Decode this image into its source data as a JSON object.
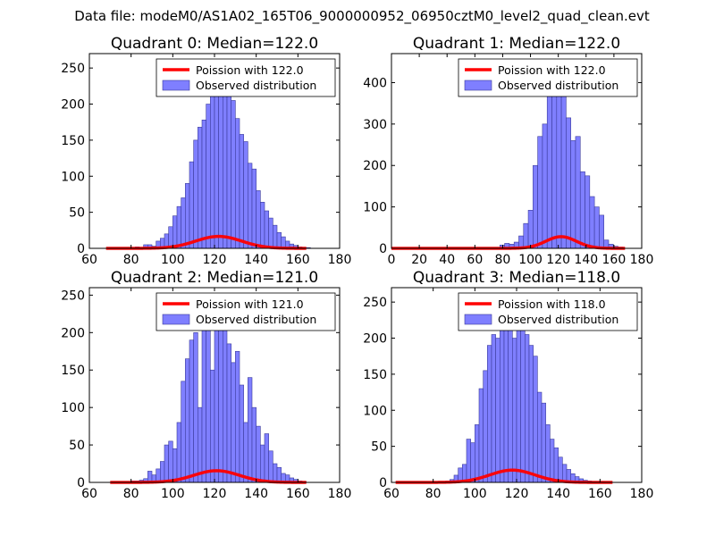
{
  "figure": {
    "suptitle": "Data file: modeM0/AS1A02_165T06_9000000952_06950cztM0_level2_quad_clean.evt"
  },
  "colors": {
    "bar_fill": "#7f7fff",
    "bar_edge": "#3a3a9a",
    "curve": "#ff0000",
    "axes": "#000000"
  },
  "chart_data": [
    {
      "type": "bar",
      "title": "Quadrant 0: Median=122.0",
      "xlim": [
        60,
        180
      ],
      "ylim": [
        0,
        270
      ],
      "xticks": [
        60,
        80,
        100,
        120,
        140,
        160,
        180
      ],
      "yticks": [
        0,
        50,
        100,
        150,
        200,
        250
      ],
      "legend": {
        "position": "top-right",
        "entries": [
          "Poission with 122.0",
          "Observed distribution"
        ]
      },
      "bin_width": 2,
      "series": [
        {
          "name": "Observed distribution",
          "kind": "histogram",
          "x": [
            68,
            70,
            72,
            74,
            76,
            78,
            80,
            82,
            84,
            86,
            88,
            90,
            92,
            94,
            96,
            98,
            100,
            102,
            104,
            106,
            108,
            110,
            112,
            114,
            116,
            118,
            120,
            122,
            124,
            126,
            128,
            130,
            132,
            134,
            136,
            138,
            140,
            142,
            144,
            146,
            148,
            150,
            152,
            154,
            156,
            158,
            160,
            162,
            164
          ],
          "values": [
            0,
            0,
            0,
            0,
            0,
            0,
            0,
            2,
            1,
            5,
            5,
            3,
            10,
            14,
            20,
            30,
            45,
            58,
            70,
            90,
            120,
            150,
            168,
            178,
            200,
            235,
            248,
            250,
            225,
            218,
            205,
            180,
            158,
            148,
            118,
            110,
            80,
            64,
            52,
            42,
            32,
            22,
            16,
            10,
            6,
            4,
            2,
            1,
            1
          ]
        },
        {
          "name": "Poission with 122.0",
          "kind": "curve",
          "mean": 122.0,
          "scale": 459,
          "x_range": [
            68,
            164
          ]
        }
      ]
    },
    {
      "type": "bar",
      "title": "Quadrant 1: Median=122.0",
      "xlim": [
        0,
        180
      ],
      "ylim": [
        0,
        470
      ],
      "xticks": [
        0,
        20,
        40,
        60,
        80,
        100,
        120,
        140,
        160,
        180
      ],
      "yticks": [
        0,
        100,
        200,
        300,
        400
      ],
      "legend": {
        "position": "top-right",
        "entries": [
          "Poission with 122.0",
          "Observed distribution"
        ]
      },
      "bin_width": 3.4,
      "series": [
        {
          "name": "Observed distribution",
          "kind": "histogram",
          "x": [
            78,
            81.4,
            84.8,
            88.2,
            91.6,
            95,
            98.4,
            101.8,
            105.2,
            108.6,
            112,
            115.4,
            118.8,
            122.2,
            125.6,
            129,
            132.4,
            135.8,
            139.2,
            142.6,
            146,
            149.4,
            152.8,
            156.2,
            159.6,
            163
          ],
          "values": [
            8,
            12,
            10,
            15,
            30,
            60,
            92,
            200,
            270,
            300,
            440,
            445,
            404,
            390,
            315,
            260,
            270,
            185,
            175,
            125,
            100,
            80,
            20,
            10,
            5,
            3
          ]
        },
        {
          "name": "Poission with 122.0",
          "kind": "curve",
          "mean": 122.0,
          "scale": 780,
          "x_range": [
            0,
            168
          ]
        }
      ]
    },
    {
      "type": "bar",
      "title": "Quadrant 2: Median=121.0",
      "xlim": [
        60,
        180
      ],
      "ylim": [
        0,
        260
      ],
      "xticks": [
        60,
        80,
        100,
        120,
        140,
        160,
        180
      ],
      "yticks": [
        0,
        50,
        100,
        150,
        200,
        250
      ],
      "legend": {
        "position": "top-right",
        "entries": [
          "Poission with 121.0",
          "Observed distribution"
        ]
      },
      "bin_width": 2,
      "series": [
        {
          "name": "Observed distribution",
          "kind": "histogram",
          "x": [
            70,
            72,
            74,
            76,
            78,
            80,
            82,
            84,
            86,
            88,
            90,
            92,
            94,
            96,
            98,
            100,
            102,
            104,
            106,
            108,
            110,
            112,
            114,
            116,
            118,
            120,
            122,
            124,
            126,
            128,
            130,
            132,
            134,
            136,
            138,
            140,
            142,
            144,
            146,
            148,
            150,
            152,
            154,
            156,
            158,
            160,
            162
          ],
          "values": [
            0,
            0,
            0,
            0,
            0,
            2,
            2,
            3,
            5,
            15,
            10,
            18,
            28,
            50,
            55,
            45,
            80,
            135,
            165,
            190,
            200,
            100,
            240,
            230,
            150,
            245,
            230,
            205,
            185,
            160,
            175,
            130,
            80,
            140,
            100,
            75,
            50,
            65,
            42,
            25,
            20,
            12,
            10,
            6,
            4,
            2,
            1
          ]
        },
        {
          "name": "Poission with 121.0",
          "kind": "curve",
          "mean": 121.0,
          "scale": 430,
          "x_range": [
            70,
            164
          ]
        }
      ]
    },
    {
      "type": "bar",
      "title": "Quadrant 3: Median=118.0",
      "xlim": [
        60,
        180
      ],
      "ylim": [
        0,
        270
      ],
      "xticks": [
        60,
        80,
        100,
        120,
        140,
        160,
        180
      ],
      "yticks": [
        0,
        50,
        100,
        150,
        200,
        250
      ],
      "legend": {
        "position": "top-right",
        "entries": [
          "Poission with 118.0",
          "Observed distribution"
        ]
      },
      "bin_width": 2,
      "series": [
        {
          "name": "Observed distribution",
          "kind": "histogram",
          "x": [
            62,
            64,
            66,
            68,
            70,
            72,
            74,
            76,
            78,
            80,
            82,
            84,
            86,
            88,
            90,
            92,
            94,
            96,
            98,
            100,
            102,
            104,
            106,
            108,
            110,
            112,
            114,
            116,
            118,
            120,
            122,
            124,
            126,
            128,
            130,
            132,
            134,
            136,
            138,
            140,
            142,
            144,
            146,
            148,
            150,
            152,
            154,
            156,
            158,
            160,
            162,
            164
          ],
          "values": [
            0,
            0,
            0,
            0,
            0,
            0,
            0,
            0,
            0,
            0,
            0,
            0,
            2,
            4,
            10,
            20,
            25,
            60,
            55,
            80,
            130,
            155,
            190,
            205,
            200,
            230,
            250,
            248,
            200,
            240,
            245,
            205,
            190,
            175,
            125,
            110,
            80,
            60,
            48,
            35,
            25,
            18,
            12,
            8,
            5,
            3,
            2,
            1,
            1,
            1,
            0,
            0
          ]
        },
        {
          "name": "Poission with 118.0",
          "kind": "curve",
          "mean": 118.0,
          "scale": 464,
          "x_range": [
            62,
            166
          ]
        }
      ]
    }
  ]
}
